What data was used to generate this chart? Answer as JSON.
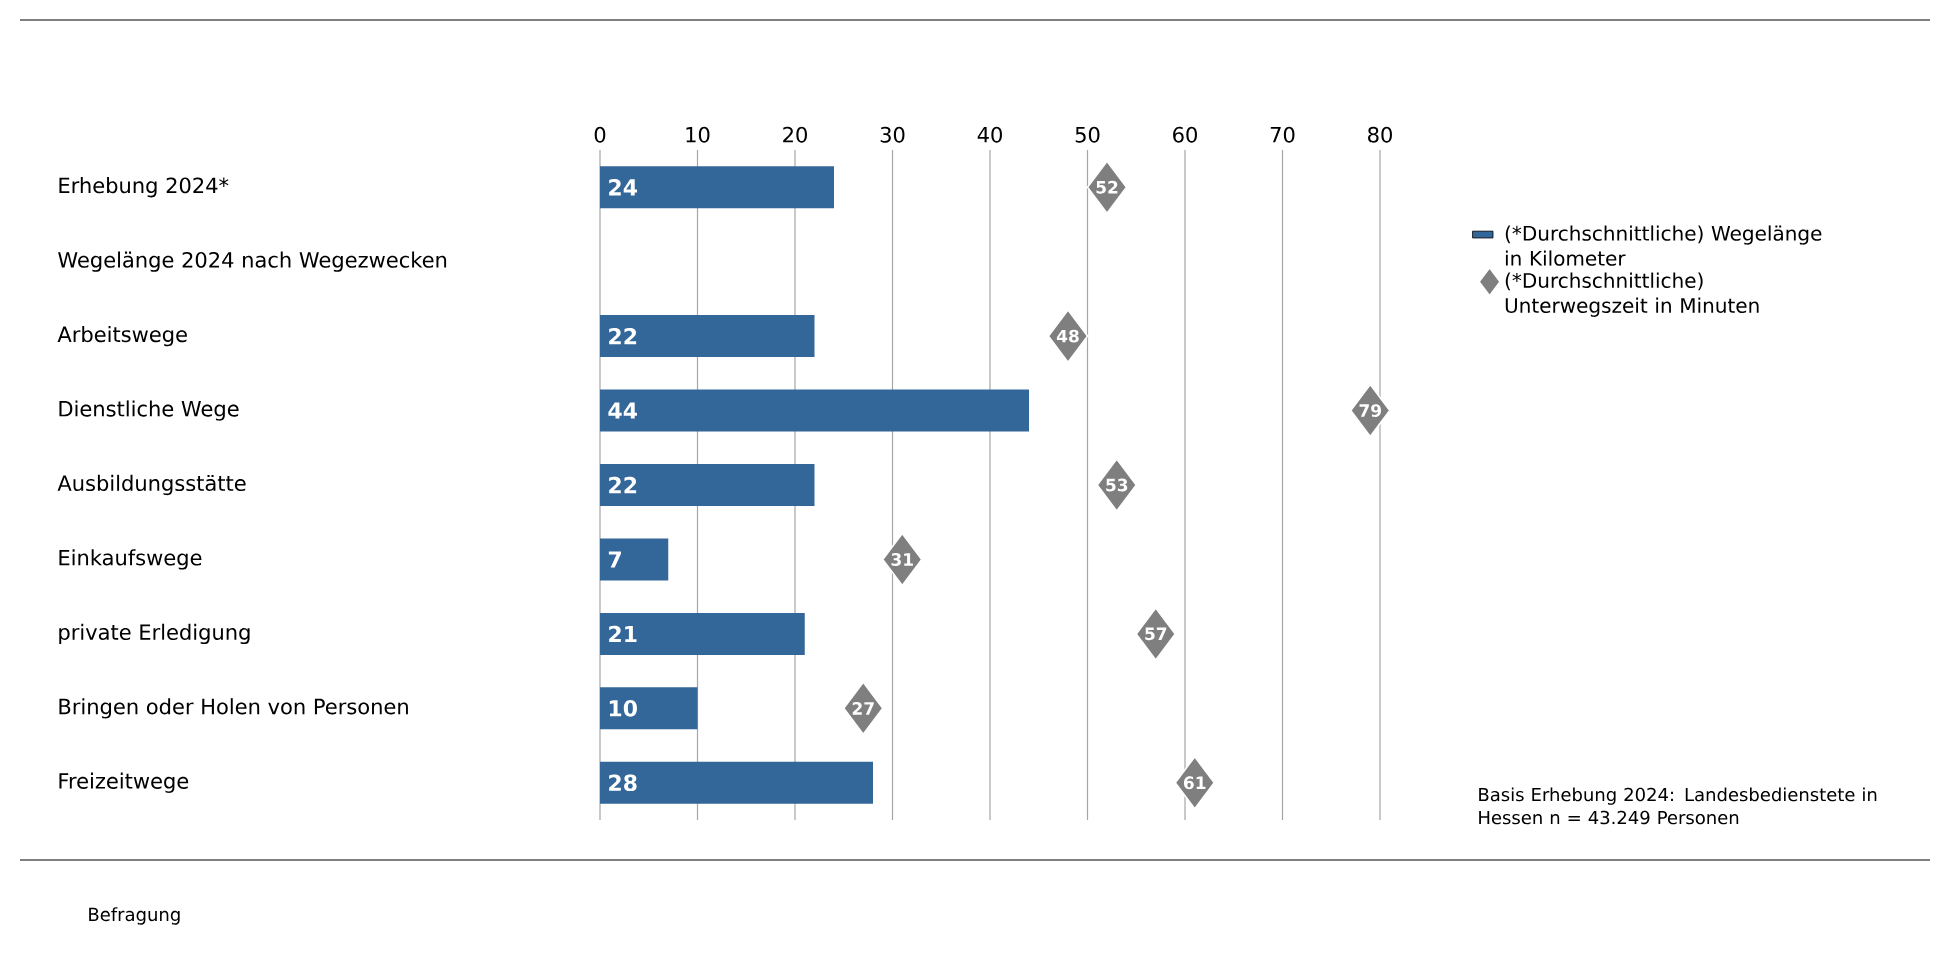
{
  "chart_data": {
    "type": "bar",
    "orientation": "horizontal",
    "categories": [
      "Erhebung 2024*",
      "Wegelänge 2024 nach Wegezwecken",
      "Arbeitswege",
      "Dienstliche Wege",
      "Ausbildungsstätte",
      "Einkaufswege",
      "private Erledigung",
      "Bringen oder Holen von Personen",
      "Freizeitwege"
    ],
    "series": [
      {
        "name": "(*Durchschnittliche) Wegelänge in Kilometer",
        "color": "#336699",
        "values": [
          24,
          null,
          22,
          44,
          22,
          7,
          21,
          10,
          28
        ]
      },
      {
        "name": "(*Durchschnittliche) Unterwegszeit in Minuten",
        "type": "scatter",
        "color": "#7f7f7f",
        "marker": "diamond",
        "values": [
          52,
          null,
          48,
          79,
          53,
          31,
          57,
          27,
          61
        ]
      }
    ],
    "xlim": [
      0,
      80
    ],
    "xticks": [
      0,
      10,
      20,
      30,
      40,
      50,
      60,
      70,
      80
    ],
    "grid": "x",
    "legend": "right",
    "data_labels": true,
    "annotations": [
      "Basis Erhebung 2024: Landesbedienstete in Hessen n = 43.249 Personen",
      "Befragung"
    ]
  }
}
